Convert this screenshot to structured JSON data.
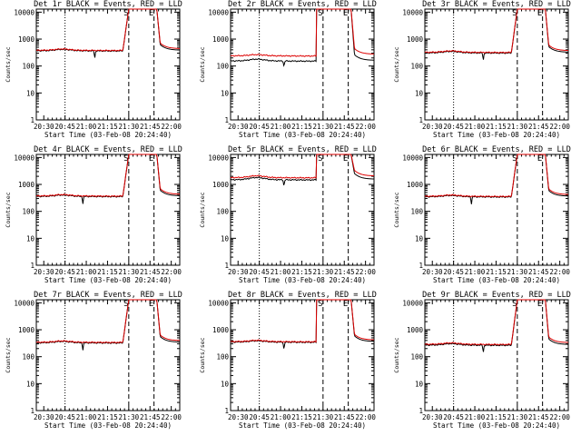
{
  "colors": {
    "events": "#000000",
    "lld": "#dd0000",
    "axes": "#000000",
    "background": "#ffffff"
  },
  "chart_data": [
    {
      "type": "line",
      "title": "Det 1r BLACK = Events, RED = LLD",
      "start_label": "S",
      "end_label": "E",
      "base_events": 370,
      "base_lld": 385,
      "bump": 45,
      "dip_time": 21.1,
      "dip_depth": 0.45,
      "high": 13000,
      "peak_time": 21.5
    },
    {
      "type": "line",
      "title": "Det 2r BLACK = Events, RED = LLD",
      "start_label": "S",
      "end_label": "E",
      "base_events": 155,
      "base_lld": 240,
      "bump": 25,
      "dip_time": 21.04,
      "dip_depth": 0.35,
      "high": 13000,
      "peak_time": 21.42
    },
    {
      "type": "line",
      "title": "Det 3r BLACK = Events, RED = LLD",
      "start_label": "S",
      "end_label": "E",
      "base_events": 310,
      "base_lld": 325,
      "bump": 40,
      "dip_time": 21.1,
      "dip_depth": 0.45,
      "high": 13000,
      "peak_time": 21.5
    },
    {
      "type": "line",
      "title": "Det 4r BLACK = Events, RED = LLD",
      "start_label": "S",
      "end_label": "E",
      "base_events": 360,
      "base_lld": 375,
      "bump": 45,
      "dip_time": 20.96,
      "dip_depth": 0.45,
      "high": 13000,
      "peak_time": 21.5
    },
    {
      "type": "line",
      "title": "Det 5r BLACK = Events, RED = LLD",
      "start_label": "S",
      "end_label": "E",
      "base_events": 1500,
      "base_lld": 1800,
      "bump": 300,
      "dip_time": 21.04,
      "dip_depth": 0.4,
      "high": 13000,
      "peak_time": 21.42
    },
    {
      "type": "line",
      "title": "Det 6r BLACK = Events, RED = LLD",
      "start_label": "S",
      "end_label": "E",
      "base_events": 350,
      "base_lld": 365,
      "bump": 40,
      "dip_time": 20.96,
      "dip_depth": 0.45,
      "high": 13000,
      "peak_time": 21.5
    },
    {
      "type": "line",
      "title": "Det 7r BLACK = Events, RED = LLD",
      "start_label": "S",
      "end_label": "E",
      "base_events": 330,
      "base_lld": 345,
      "bump": 40,
      "dip_time": 20.96,
      "dip_depth": 0.45,
      "high": 13000,
      "peak_time": 21.5
    },
    {
      "type": "line",
      "title": "Det 8r BLACK = Events, RED = LLD",
      "start_label": "S",
      "end_label": "E",
      "base_events": 350,
      "base_lld": 365,
      "bump": 40,
      "dip_time": 21.04,
      "dip_depth": 0.45,
      "high": 13000,
      "peak_time": 21.42
    },
    {
      "type": "line",
      "title": "Det 9r BLACK = Events, RED = LLD",
      "start_label": "S",
      "end_label": "E",
      "base_events": 270,
      "base_lld": 290,
      "bump": 35,
      "dip_time": 21.1,
      "dip_depth": 0.45,
      "high": 13000,
      "peak_time": 21.5
    }
  ],
  "shared": {
    "ylabel": "Counts/sec",
    "xlabel": "Start Time (03-Feb-08 20:24:40)",
    "x_ticks": [
      "20:30",
      "20:45",
      "21:00",
      "21:15",
      "21:30",
      "21:45",
      "22:00"
    ],
    "x_tick_values": [
      20.5,
      20.75,
      21.0,
      21.25,
      21.5,
      21.75,
      22.0
    ],
    "y_ticks": [
      "1",
      "10",
      "100",
      "1000",
      "10000"
    ],
    "y_tick_values": [
      1,
      10,
      100,
      1000,
      10000
    ],
    "y_scale": "log",
    "ylim": [
      1,
      13000
    ],
    "xlim": [
      20.412,
      22.1
    ],
    "dotted_line_x": 20.75,
    "dashed_lines_x": [
      21.5,
      21.797
    ],
    "saa_rise": 21.46,
    "saa_fall": 21.83
  }
}
